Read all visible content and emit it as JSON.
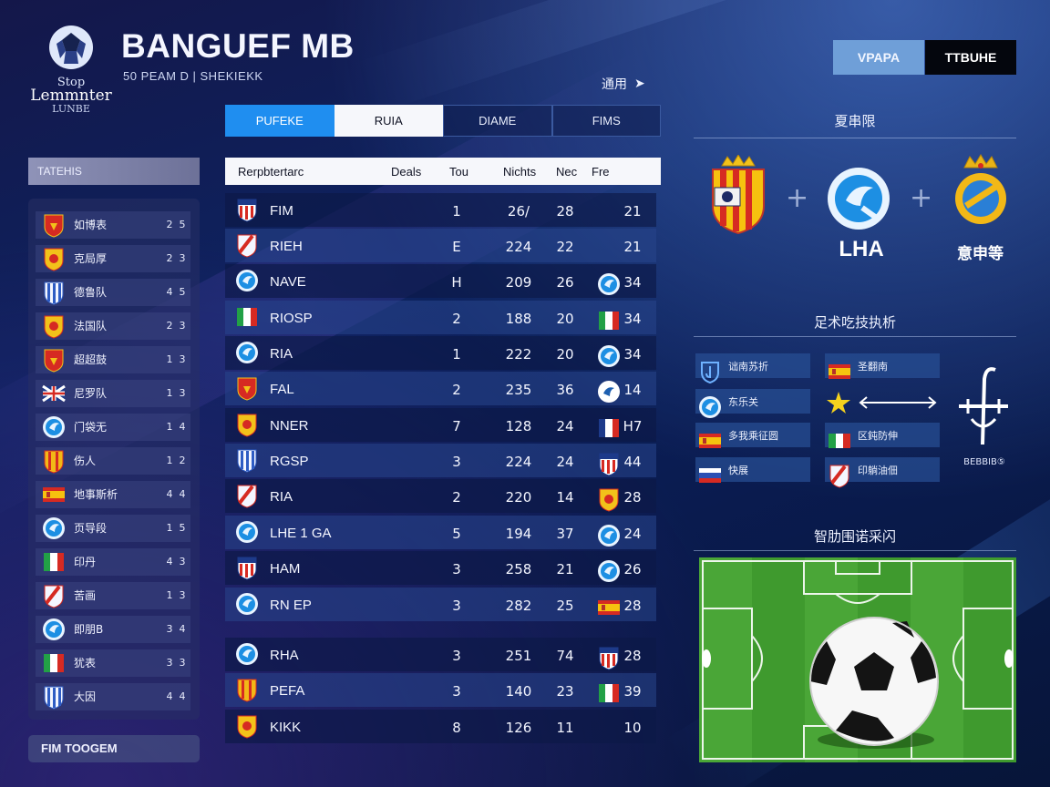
{
  "header": {
    "logo_line1": "Stop",
    "logo_line2": "Lemmnter",
    "logo_line3": "LUNBE",
    "title": "BANGUEF MB",
    "subtitle": "50 PEAM D  |  SHEKIEKK",
    "top_link": "通用",
    "top_link_arrow": "➤",
    "buttons": [
      "VPAPA",
      "TTBUHE"
    ]
  },
  "tabs": [
    {
      "label": "PUFEKE",
      "state": "active"
    },
    {
      "label": "RUIA",
      "state": "white"
    },
    {
      "label": "DIAME",
      "state": "dark"
    },
    {
      "label": "FIMS",
      "state": "dark"
    }
  ],
  "sidebar": {
    "header": "TATEHIS",
    "footer": "FIM TOOGEM",
    "items": [
      {
        "badge": "red-gold",
        "name": "如博表",
        "s1": "2",
        "s2": "5"
      },
      {
        "badge": "gold-red",
        "name": "克局厚",
        "s1": "2",
        "s2": "3"
      },
      {
        "badge": "stripes-blue",
        "name": "德鲁队",
        "s1": "4",
        "s2": "5"
      },
      {
        "badge": "gold-red",
        "name": "法国队",
        "s1": "2",
        "s2": "3"
      },
      {
        "badge": "red-gold",
        "name": "超超鼓",
        "s1": "1",
        "s2": "3"
      },
      {
        "badge": "union",
        "name": "尼罗队",
        "s1": "1",
        "s2": "3"
      },
      {
        "badge": "blue-circle",
        "name": "门袋无",
        "s1": "1",
        "s2": "4"
      },
      {
        "badge": "gold-stripes",
        "name": "伤人",
        "s1": "1",
        "s2": "2"
      },
      {
        "badge": "spain",
        "name": "地事斯析",
        "s1": "4",
        "s2": "4"
      },
      {
        "badge": "blue-circle",
        "name": "页导段",
        "s1": "1",
        "s2": "5"
      },
      {
        "badge": "italy",
        "name": "印丹",
        "s1": "4",
        "s2": "3"
      },
      {
        "badge": "red-white",
        "name": "苦画",
        "s1": "1",
        "s2": "3"
      },
      {
        "badge": "blue-circle",
        "name": "即朋B",
        "s1": "3",
        "s2": "4"
      },
      {
        "badge": "italy",
        "name": "犹表",
        "s1": "3",
        "s2": "3"
      },
      {
        "badge": "stripes-blue",
        "name": "大因",
        "s1": "4",
        "s2": "4"
      }
    ]
  },
  "table": {
    "headers": [
      "Rerpbtertarc",
      "Deals",
      "Tou",
      "Nichts",
      "Nec",
      "Fre"
    ],
    "rows": [
      {
        "badge": "atletico",
        "team": "FIM",
        "c1": "1",
        "c2": "26/",
        "c3": "28",
        "badge2": "",
        "c4": "21"
      },
      {
        "badge": "red-white",
        "team": "RIEH",
        "c1": "E",
        "c2": "224",
        "c3": "22",
        "badge2": "",
        "c4": "21"
      },
      {
        "badge": "blue-circle",
        "team": "NAVE",
        "c1": "H",
        "c2": "209",
        "c3": "26",
        "badge2": "blue-circle",
        "c4": "34"
      },
      {
        "badge": "italy",
        "team": "RIOSP",
        "c1": "2",
        "c2": "188",
        "c3": "20",
        "badge2": "italy",
        "c4": "34"
      },
      {
        "badge": "blue-circle",
        "team": "RIA",
        "c1": "1",
        "c2": "222",
        "c3": "20",
        "badge2": "blue-circle",
        "c4": "34"
      },
      {
        "badge": "red-gold",
        "team": "FAL",
        "c1": "2",
        "c2": "235",
        "c3": "36",
        "badge2": "white-circle",
        "c4": "14"
      },
      {
        "badge": "gold-red",
        "team": "NNER",
        "c1": "7",
        "c2": "128",
        "c3": "24",
        "badge2": "france",
        "c4": "H7"
      },
      {
        "badge": "stripes-blue",
        "team": "RGSP",
        "c1": "3",
        "c2": "224",
        "c3": "24",
        "badge2": "atletico",
        "c4": "44"
      },
      {
        "badge": "red-white",
        "team": "RIA",
        "c1": "2",
        "c2": "220",
        "c3": "14",
        "badge2": "gold-red",
        "c4": "28"
      },
      {
        "badge": "blue-circle",
        "team": "LHE 1 GA",
        "c1": "5",
        "c2": "194",
        "c3": "37",
        "badge2": "blue-circle",
        "c4": "24"
      },
      {
        "badge": "atletico",
        "team": "HAM",
        "c1": "3",
        "c2": "258",
        "c3": "21",
        "badge2": "blue-circle",
        "c4": "26"
      },
      {
        "badge": "blue-circle",
        "team": "RN EP",
        "c1": "3",
        "c2": "282",
        "c3": "25",
        "badge2": "spain",
        "c4": "28"
      },
      {
        "badge": "blue-circle",
        "team": "RHA",
        "c1": "3",
        "c2": "251",
        "c3": "74",
        "badge2": "atletico",
        "c4": "28"
      },
      {
        "badge": "gold-stripes",
        "team": "PEFA",
        "c1": "3",
        "c2": "140",
        "c3": "23",
        "badge2": "italy",
        "c4": "39"
      },
      {
        "badge": "gold-red",
        "team": "KIKK",
        "c1": "8",
        "c2": "126",
        "c3": "11",
        "badge2": "",
        "c4": "10"
      }
    ]
  },
  "match": {
    "section_title": "夏串限",
    "home_label": "",
    "mid_label": "LHA",
    "away_label": "意申等"
  },
  "formation": {
    "section_title": "足术吃技执析",
    "items": [
      {
        "flag": "blue-outline",
        "text": "诎南苏折"
      },
      {
        "flag": "spain",
        "text": "圣翻南"
      },
      {
        "flag": "blue-circle",
        "text": "东乐关"
      },
      {
        "flag": "spain",
        "text": "多我乘征圆"
      },
      {
        "flag": "mexico",
        "text": "区鈍防伸"
      },
      {
        "flag": "russia",
        "text": "快展"
      },
      {
        "flag": "red-white",
        "text": "印躺油佃"
      }
    ],
    "strategy_label": "BEBBIB⑤"
  },
  "pitch": {
    "section_title": "智肋围诺采闪"
  },
  "colors": {
    "accent": "#1f8ef0",
    "row_dark": "#0c1846",
    "row_light": "#28468c",
    "pitch_green": "#3f9a2e"
  }
}
